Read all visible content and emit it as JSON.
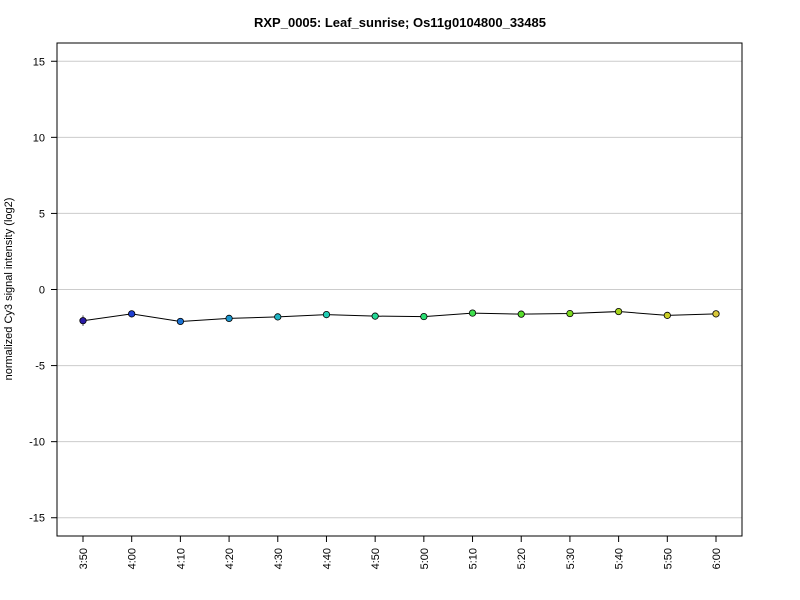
{
  "chart_data": {
    "type": "line",
    "title": "RXP_0005: Leaf_sunrise; Os11g0104800_33485",
    "xlabel": "",
    "ylabel": "normalized Cy3 signal intensity (log2)",
    "ylim": [
      -16.2,
      16.2
    ],
    "y_ticks": [
      -15,
      -10,
      -5,
      0,
      5,
      10,
      15
    ],
    "y_tick_labels": [
      "-15",
      "-10",
      "-5",
      "0",
      "5",
      "10",
      "15"
    ],
    "categories": [
      "3:50",
      "4:00",
      "4:10",
      "4:20",
      "4:30",
      "4:40",
      "4:50",
      "5:00",
      "5:10",
      "5:20",
      "5:30",
      "5:40",
      "5:50",
      "6:00"
    ],
    "series": [
      {
        "values": [
          -2.05,
          -1.6,
          -2.1,
          -1.9,
          -1.8,
          -1.65,
          -1.75,
          -1.78,
          -1.55,
          -1.62,
          -1.58,
          -1.45,
          -1.7,
          -1.6
        ],
        "error": [
          0.35,
          0.08,
          0.08,
          0.12,
          0.22,
          0.1,
          0.08,
          0.08,
          0.1,
          0.1,
          0.1,
          0.12,
          0.1,
          0.1
        ],
        "colors": [
          "#2a1aa8",
          "#1f3fd2",
          "#1a73d6",
          "#1c98d0",
          "#1fb5c5",
          "#22cdb3",
          "#24d895",
          "#2bde72",
          "#3fe04d",
          "#58de2c",
          "#7dda1e",
          "#a6d41c",
          "#cace26",
          "#d9c83a"
        ]
      }
    ],
    "grid": "horizontal",
    "line_color": "#000000"
  }
}
